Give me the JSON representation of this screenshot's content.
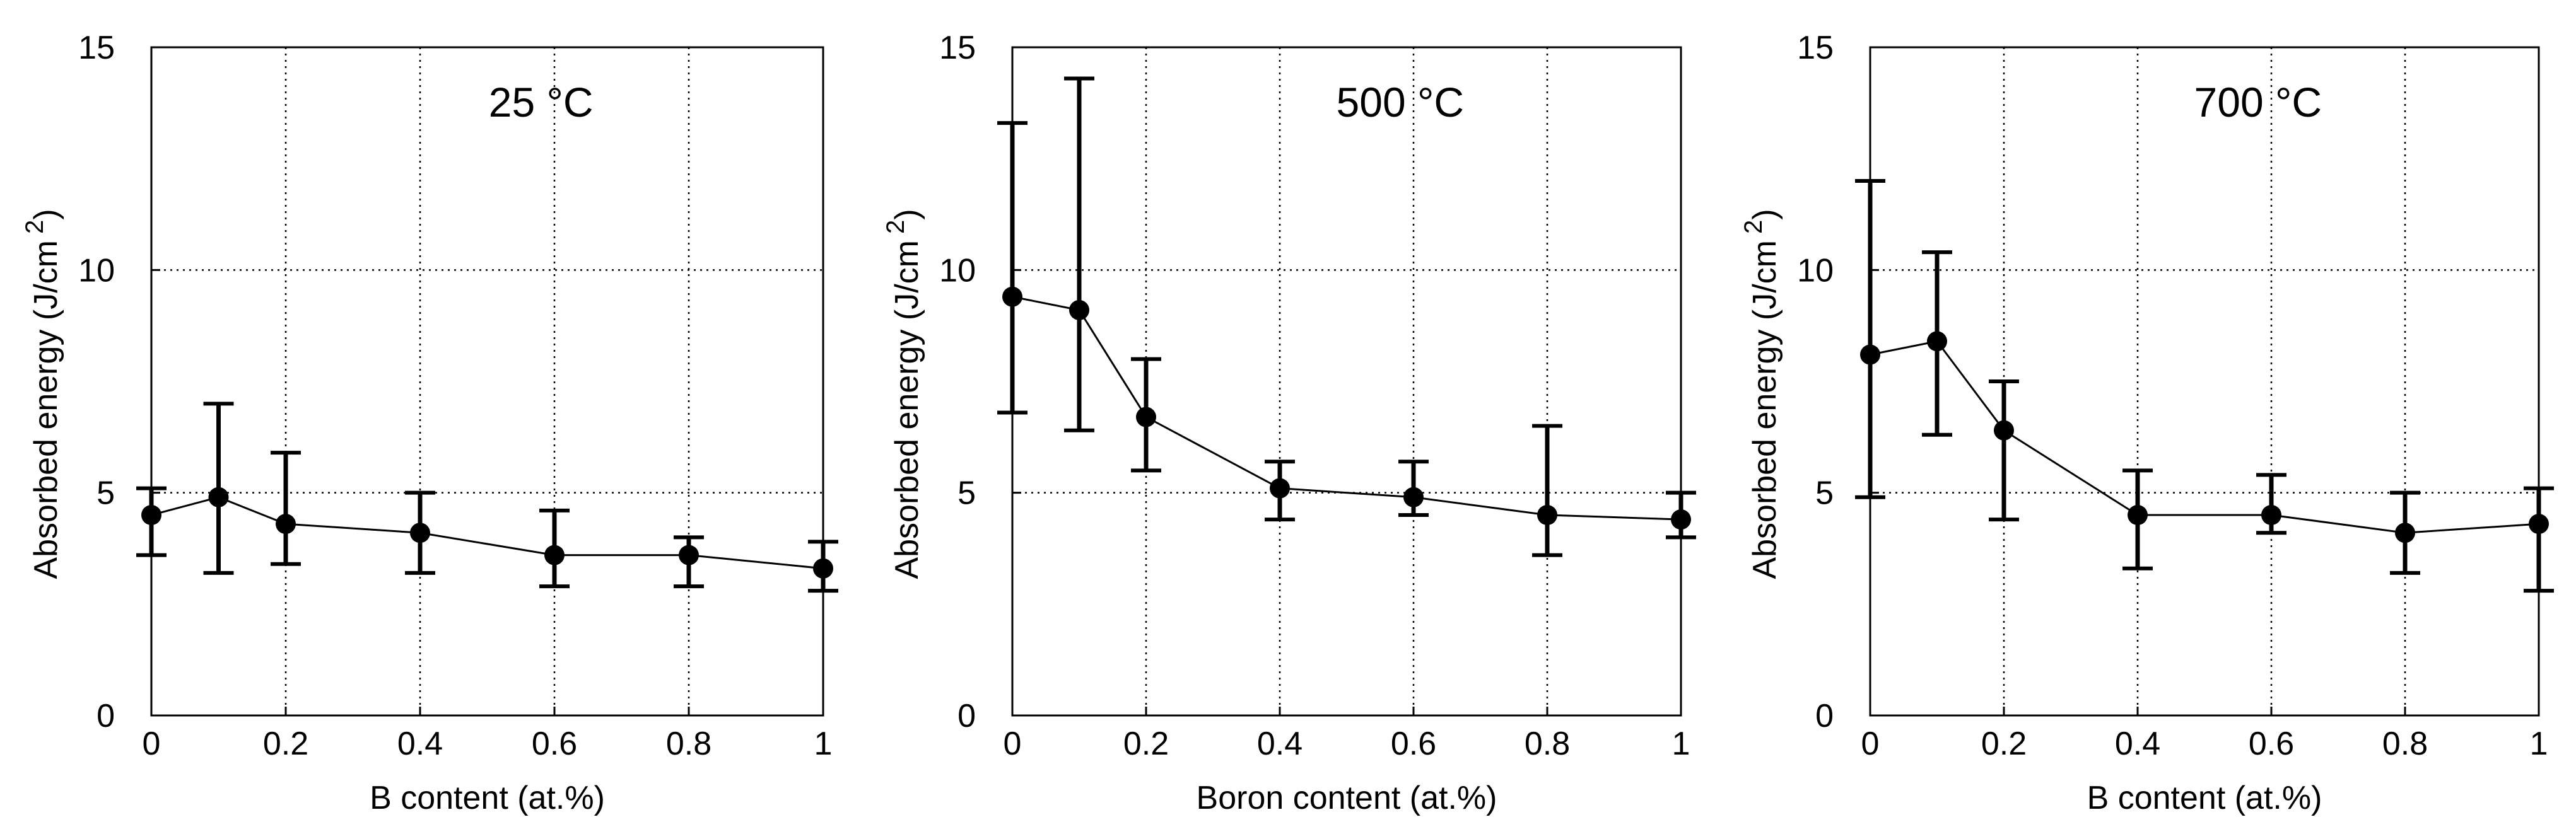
{
  "chart_data": [
    {
      "type": "scatter",
      "title": "25 °C",
      "title_main": "25",
      "title_unit": "°C",
      "xlabel": "B content (at.%)",
      "ylabel": "Absorbed energy (J/cm",
      "ylabel_sup": "2",
      "ylabel_close": ")",
      "xlim": [
        0,
        1
      ],
      "ylim": [
        0,
        15
      ],
      "xticks": [
        0,
        0.2,
        0.4,
        0.6,
        0.8,
        1
      ],
      "yticks": [
        0,
        5,
        10,
        15
      ],
      "grid": true,
      "series": [
        {
          "x": [
            0,
            0.1,
            0.2,
            0.4,
            0.6,
            0.8,
            1
          ],
          "y": [
            4.5,
            4.9,
            4.3,
            4.1,
            3.6,
            3.6,
            3.3
          ],
          "err_low": [
            3.6,
            3.2,
            3.4,
            3.2,
            2.9,
            2.9,
            2.8
          ],
          "err_high": [
            5.1,
            7.0,
            5.9,
            5.0,
            4.6,
            4.0,
            3.9
          ]
        }
      ]
    },
    {
      "type": "scatter",
      "title": "500 °C",
      "title_main": "500",
      "title_unit": "°C",
      "xlabel": "Boron content (at.%)",
      "ylabel": "Absorbed energy (J/cm",
      "ylabel_sup": "2",
      "ylabel_close": ")",
      "xlim": [
        0,
        1
      ],
      "ylim": [
        0,
        15
      ],
      "xticks": [
        0,
        0.2,
        0.4,
        0.6,
        0.8,
        1
      ],
      "yticks": [
        0,
        5,
        10,
        15
      ],
      "grid": true,
      "series": [
        {
          "x": [
            0,
            0.1,
            0.2,
            0.4,
            0.6,
            0.8,
            1
          ],
          "y": [
            9.4,
            9.1,
            6.7,
            5.1,
            4.9,
            4.5,
            4.4
          ],
          "err_low": [
            6.8,
            6.4,
            5.5,
            4.4,
            4.5,
            3.6,
            4.0
          ],
          "err_high": [
            13.3,
            14.3,
            8.0,
            5.7,
            5.7,
            6.5,
            5.0
          ]
        }
      ]
    },
    {
      "type": "scatter",
      "title": "700 °C",
      "title_main": "700",
      "title_unit": "°C",
      "xlabel": "B content (at.%)",
      "ylabel": "Absorbed energy (J/cm",
      "ylabel_sup": "2",
      "ylabel_close": ")",
      "xlim": [
        0,
        1
      ],
      "ylim": [
        0,
        15
      ],
      "xticks": [
        0,
        0.2,
        0.4,
        0.6,
        0.8,
        1
      ],
      "yticks": [
        0,
        5,
        10,
        15
      ],
      "grid": true,
      "series": [
        {
          "x": [
            0,
            0.1,
            0.2,
            0.4,
            0.6,
            0.8,
            1
          ],
          "y": [
            8.1,
            8.4,
            6.4,
            4.5,
            4.5,
            4.1,
            4.3
          ],
          "err_low": [
            4.9,
            6.3,
            4.4,
            3.3,
            4.1,
            3.2,
            2.8
          ],
          "err_high": [
            12.0,
            10.4,
            7.5,
            5.5,
            5.4,
            5.0,
            5.1
          ]
        }
      ]
    }
  ]
}
